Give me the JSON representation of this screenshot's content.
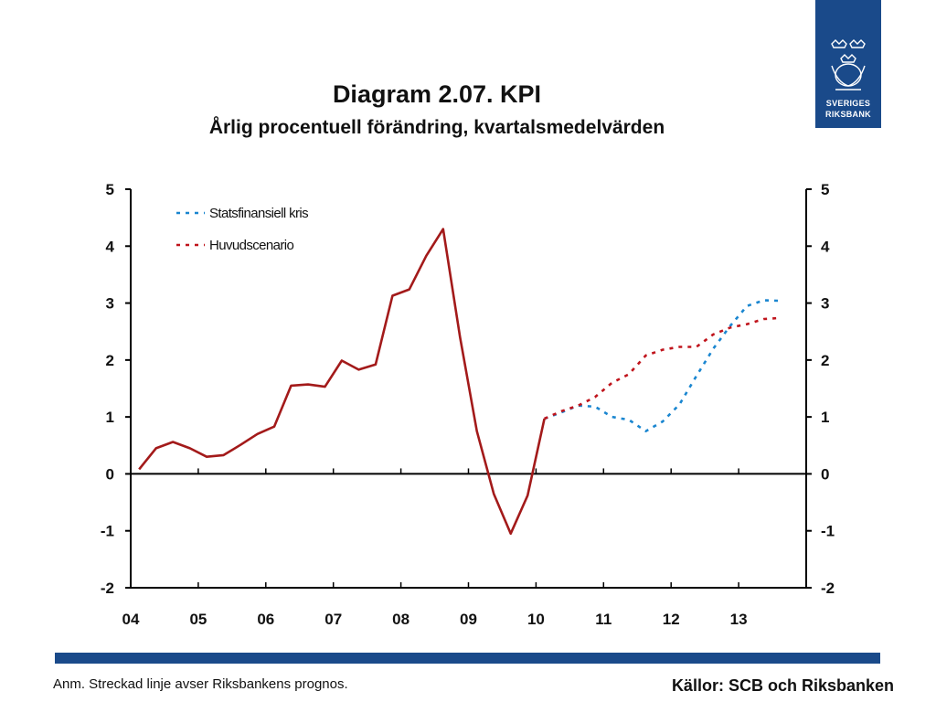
{
  "title": "Diagram 2.07. KPI",
  "subtitle": "Årlig procentuell förändring, kvartalsmedelvärden",
  "logo": {
    "line1": "SVERIGES",
    "line2": "RIKSBANK"
  },
  "note": "Anm. Streckad linje avser Riksbankens prognos.",
  "sources": "Källor: SCB och Riksbanken",
  "colors": {
    "historical": "#a31a1a",
    "huvudscenario": "#c0141c",
    "statsfinansiell": "#1a86d0",
    "brand": "#1a4a8a"
  },
  "chart_data": {
    "type": "line",
    "title": "Diagram 2.07. KPI",
    "subtitle": "Årlig procentuell förändring, kvartalsmedelvärden",
    "xlim": [
      2004,
      2014
    ],
    "ylim": [
      -2,
      5
    ],
    "yticks": [
      "-2",
      "-1",
      "0",
      "1",
      "2",
      "3",
      "4",
      "5"
    ],
    "xticks": [
      "04",
      "05",
      "06",
      "07",
      "08",
      "09",
      "10",
      "11",
      "12",
      "13"
    ],
    "grid": false,
    "legend_position": "top-left",
    "series": [
      {
        "style": "solid",
        "x": [
          2004.125,
          2004.375,
          2004.625,
          2004.875,
          2005.125,
          2005.375,
          2005.625,
          2005.875,
          2006.125,
          2006.375,
          2006.625,
          2006.875,
          2007.125,
          2007.375,
          2007.625,
          2007.875,
          2008.125,
          2008.375,
          2008.625,
          2008.875,
          2009.125,
          2009.375,
          2009.625,
          2009.875,
          2010.125
        ],
        "y": [
          0.08,
          0.45,
          0.56,
          0.45,
          0.3,
          0.33,
          0.51,
          0.7,
          0.83,
          1.55,
          1.57,
          1.53,
          1.99,
          1.83,
          1.92,
          3.13,
          3.24,
          3.83,
          4.3,
          2.4,
          0.75,
          -0.35,
          -1.05,
          -0.38,
          0.97
        ]
      },
      {
        "name": "Statsfinansiell kris",
        "style": "dashed",
        "x": [
          2010.125,
          2010.375,
          2010.625,
          2010.875,
          2011.125,
          2011.375,
          2011.625,
          2011.875,
          2012.125,
          2012.375,
          2012.625,
          2012.875,
          2013.125,
          2013.375,
          2013.625
        ],
        "y": [
          0.97,
          1.08,
          1.2,
          1.18,
          1.0,
          0.95,
          0.75,
          0.92,
          1.22,
          1.72,
          2.2,
          2.6,
          2.95,
          3.05,
          3.04
        ]
      },
      {
        "name": "Huvudscenario",
        "style": "dashed",
        "x": [
          2010.125,
          2010.375,
          2010.625,
          2010.875,
          2011.125,
          2011.375,
          2011.625,
          2011.875,
          2012.125,
          2012.375,
          2012.625,
          2012.875,
          2013.125,
          2013.375,
          2013.625
        ],
        "y": [
          0.97,
          1.1,
          1.2,
          1.35,
          1.6,
          1.75,
          2.08,
          2.18,
          2.23,
          2.23,
          2.45,
          2.57,
          2.63,
          2.72,
          2.74
        ]
      }
    ]
  }
}
